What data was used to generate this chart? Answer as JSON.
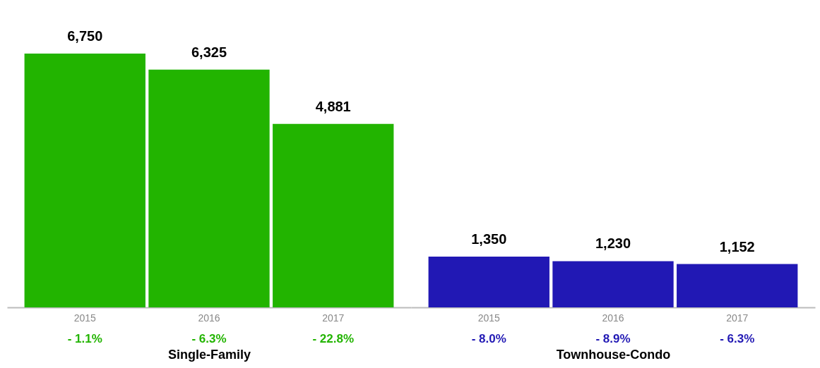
{
  "chart_data": [
    {
      "type": "bar",
      "categories": [
        "2015",
        "2016",
        "2017"
      ],
      "values": [
        6750,
        6325,
        4881
      ],
      "value_labels": [
        "6,750",
        "6,325",
        "4,881"
      ],
      "color": "#22b400",
      "xlabel": "Single-Family",
      "annotations": [
        "- 1.1%",
        "- 6.3%",
        "- 22.8%"
      ]
    },
    {
      "type": "bar",
      "categories": [
        "2015",
        "2016",
        "2017"
      ],
      "values": [
        1350,
        1230,
        1152
      ],
      "value_labels": [
        "1,350",
        "1,230",
        "1,152"
      ],
      "color": "#2118b4",
      "xlabel": "Townhouse-Condo",
      "annotations": [
        "- 8.0%",
        "- 8.9%",
        "- 6.3%"
      ]
    }
  ]
}
